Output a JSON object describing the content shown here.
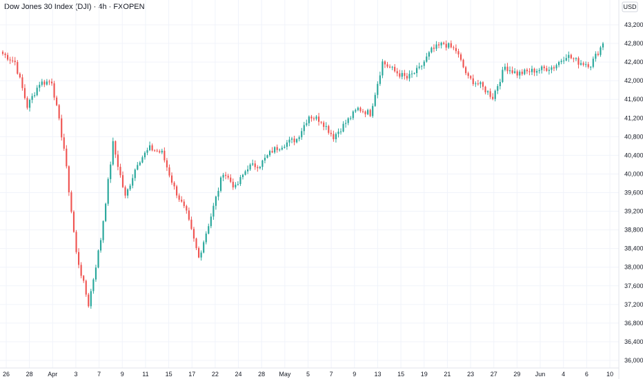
{
  "chart_data": {
    "type": "candlestick",
    "title": "Dow Jones 30 Index (DJI) · 4h · FXOPEN",
    "currency": "USD",
    "grid": true,
    "ylim": [
      35950,
      43600
    ],
    "y_ticks": [
      43200,
      42800,
      42400,
      42000,
      41600,
      41200,
      40800,
      40400,
      40000,
      39600,
      39200,
      38800,
      38400,
      38000,
      37600,
      37200,
      36800,
      36400,
      36000
    ],
    "y_tick_labels": [
      "43,200.0",
      "42,800.0",
      "42,400.0",
      "42,000.0",
      "41,600.0",
      "41,200.0",
      "40,800.0",
      "40,400.0",
      "40,000.0",
      "39,600.0",
      "39,200.0",
      "38,800.0",
      "38,400.0",
      "38,000.0",
      "37,600.0",
      "37,200.0",
      "36,800.0",
      "36,400.0",
      "36,000.0"
    ],
    "x_labels": [
      "26",
      "28",
      "Apr",
      "3",
      "7",
      "9",
      "11",
      "15",
      "17",
      "22",
      "24",
      "28",
      "May",
      "5",
      "7",
      "9",
      "13",
      "15",
      "19",
      "21",
      "23",
      "27",
      "29",
      "Jun",
      "4",
      "6",
      "10"
    ],
    "up_color": "#26a69a",
    "down_color": "#ef5350",
    "series": [
      {
        "date": "Mar 26",
        "close": 42580
      },
      {
        "date": "Mar 28",
        "close": 42400
      },
      {
        "date": "Mar 31",
        "close": 41450
      },
      {
        "date": "Apr 1",
        "close": 41950
      },
      {
        "date": "Apr 2",
        "close": 41990
      },
      {
        "date": "Apr 3",
        "close": 40550
      },
      {
        "date": "Apr 4",
        "close": 38300
      },
      {
        "date": "Apr 7",
        "close": 37200
      },
      {
        "date": "Apr 8",
        "close": 38600
      },
      {
        "date": "Apr 9",
        "close": 40650
      },
      {
        "date": "Apr 10",
        "close": 39500
      },
      {
        "date": "Apr 11",
        "close": 40250
      },
      {
        "date": "Apr 14",
        "close": 40550
      },
      {
        "date": "Apr 15",
        "close": 40450
      },
      {
        "date": "Apr 16",
        "close": 39700
      },
      {
        "date": "Apr 17",
        "close": 39150
      },
      {
        "date": "Apr 21",
        "close": 38200
      },
      {
        "date": "Apr 22",
        "close": 39100
      },
      {
        "date": "Apr 23",
        "close": 40050
      },
      {
        "date": "Apr 24",
        "close": 39700
      },
      {
        "date": "Apr 25",
        "close": 40150
      },
      {
        "date": "Apr 28",
        "close": 40200
      },
      {
        "date": "Apr 29",
        "close": 40500
      },
      {
        "date": "Apr 30",
        "close": 40650
      },
      {
        "date": "May 1",
        "close": 40750
      },
      {
        "date": "May 2",
        "close": 41250
      },
      {
        "date": "May 5",
        "close": 41150
      },
      {
        "date": "May 6",
        "close": 40800
      },
      {
        "date": "May 7",
        "close": 41100
      },
      {
        "date": "May 8",
        "close": 41400
      },
      {
        "date": "May 9",
        "close": 41300
      },
      {
        "date": "May 12",
        "close": 42400
      },
      {
        "date": "May 13",
        "close": 42200
      },
      {
        "date": "May 14",
        "close": 42050
      },
      {
        "date": "May 15",
        "close": 42250
      },
      {
        "date": "May 16",
        "close": 42650
      },
      {
        "date": "May 19",
        "close": 42800
      },
      {
        "date": "May 20",
        "close": 42650
      },
      {
        "date": "May 21",
        "close": 42050
      },
      {
        "date": "May 22",
        "close": 41900
      },
      {
        "date": "May 23",
        "close": 41650
      },
      {
        "date": "May 27",
        "close": 42300
      },
      {
        "date": "May 28",
        "close": 42150
      },
      {
        "date": "May 29",
        "close": 42200
      },
      {
        "date": "May 30",
        "close": 42250
      },
      {
        "date": "Jun 2",
        "close": 42300
      },
      {
        "date": "Jun 3",
        "close": 42550
      },
      {
        "date": "Jun 4",
        "close": 42400
      },
      {
        "date": "Jun 5",
        "close": 42350
      },
      {
        "date": "Jun 6",
        "close": 42800
      }
    ]
  }
}
